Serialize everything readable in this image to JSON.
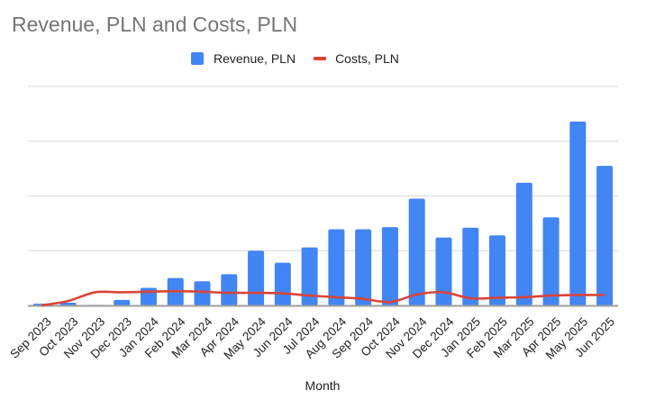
{
  "chart_data": {
    "type": "bar",
    "title": "Revenue, PLN and Costs, PLN",
    "xlabel": "Month",
    "ylabel": "",
    "ylim": [
      0,
      4
    ],
    "y_tick_labels_visible": false,
    "grid": true,
    "legend_position": "top-center",
    "categories": [
      "Sep 2023",
      "Oct 2023",
      "Nov 2023",
      "Dec 2023",
      "Jan 2024",
      "Feb 2024",
      "Mar 2024",
      "Apr 2024",
      "May 2024",
      "Jun 2024",
      "Jul 2024",
      "Aug 2024",
      "Sep 2024",
      "Oct 2024",
      "Nov 2024",
      "Dec 2024",
      "Jan 2025",
      "Feb 2025",
      "Mar 2025",
      "Apr 2025",
      "May 2025",
      "Jun 2025"
    ],
    "series": [
      {
        "name": "Revenue, PLN",
        "type": "bar",
        "color": "#4285f4",
        "values": [
          0.03,
          0.05,
          0.01,
          0.1,
          0.32,
          0.5,
          0.44,
          0.57,
          1.0,
          0.78,
          1.06,
          1.39,
          1.39,
          1.43,
          1.95,
          1.24,
          1.42,
          1.28,
          2.24,
          1.61,
          3.36,
          2.55
        ]
      },
      {
        "name": "Costs, PLN",
        "type": "line",
        "color": "#db4437",
        "values": [
          0.0,
          0.08,
          0.24,
          0.24,
          0.25,
          0.26,
          0.25,
          0.23,
          0.23,
          0.22,
          0.18,
          0.15,
          0.12,
          0.06,
          0.2,
          0.24,
          0.13,
          0.14,
          0.15,
          0.18,
          0.19,
          0.19
        ]
      }
    ]
  },
  "colors": {
    "title": "#757575",
    "grid": "#e0e0e0",
    "axis": "#9e9e9e"
  }
}
